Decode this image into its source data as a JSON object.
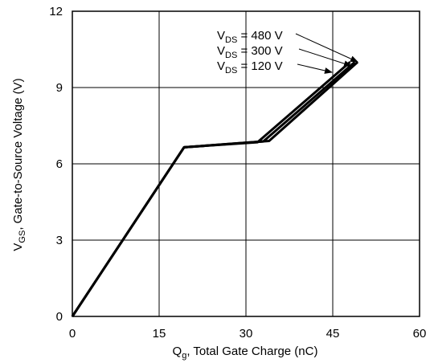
{
  "chart_data": {
    "type": "line",
    "xlabel_main": "Q",
    "xlabel_sub": "g",
    "xlabel_rest": ", Total Gate Charge (nC)",
    "ylabel_main": "V",
    "ylabel_sub": "GS",
    "ylabel_rest": ", Gate-to-Source Voltage (V)",
    "xlim": [
      0,
      60
    ],
    "ylim": [
      0,
      12
    ],
    "xticks": [
      0,
      15,
      30,
      45,
      60
    ],
    "yticks": [
      0,
      3,
      6,
      9,
      12
    ],
    "xtick_labels": [
      "0",
      "15",
      "30",
      "45",
      "60"
    ],
    "ytick_labels": [
      "0",
      "3",
      "6",
      "9",
      "12"
    ],
    "grid": true,
    "series": [
      {
        "x": [
          0,
          19.3,
          32.0,
          48.0
        ],
        "y": [
          0,
          6.65,
          6.85,
          10.0
        ]
      },
      {
        "x": [
          0,
          19.3,
          33.0,
          48.8
        ],
        "y": [
          0,
          6.65,
          6.88,
          10.0
        ]
      },
      {
        "x": [
          0,
          19.3,
          34.0,
          49.3
        ],
        "y": [
          0,
          6.65,
          6.9,
          10.0
        ]
      }
    ],
    "annotations": [
      {
        "main": "V",
        "sub": "DS",
        "rest": " = 480 V"
      },
      {
        "main": "V",
        "sub": "DS",
        "rest": " = 300 V"
      },
      {
        "main": "V",
        "sub": "DS",
        "rest": " = 120 V"
      }
    ]
  }
}
